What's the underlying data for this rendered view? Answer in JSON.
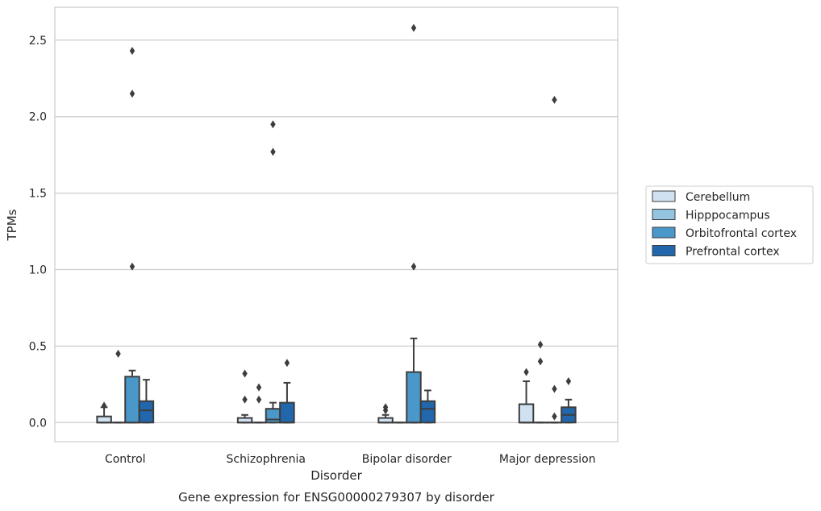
{
  "chart_data": {
    "type": "box",
    "title": "",
    "caption": "Gene expression for ENSG00000279307 by disorder",
    "xlabel": "Disorder",
    "ylabel": "TPMs",
    "ylim": [
      -0.125,
      2.715
    ],
    "yticks": [
      0.0,
      0.5,
      1.0,
      1.5,
      2.0,
      2.5
    ],
    "ytick_labels": [
      "0.0",
      "0.5",
      "1.0",
      "1.5",
      "2.0",
      "2.5"
    ],
    "grid": "horizontal",
    "legend_position": "right",
    "categories": [
      "Control",
      "Schizophrenia",
      "Bipolar disorder",
      "Major depression"
    ],
    "series": [
      {
        "name": "Cerebellum",
        "color": "#d0e1f2",
        "boxes": [
          {
            "q1": 0.0,
            "median": 0.0,
            "q3": 0.04,
            "whislo": 0.0,
            "whishi": 0.1,
            "fliers": [
              0.11
            ]
          },
          {
            "q1": 0.0,
            "median": 0.0,
            "q3": 0.03,
            "whislo": 0.0,
            "whishi": 0.05,
            "fliers": [
              0.15,
              0.32
            ]
          },
          {
            "q1": 0.0,
            "median": 0.0,
            "q3": 0.03,
            "whislo": 0.0,
            "whishi": 0.05,
            "fliers": [
              0.08,
              0.1
            ]
          },
          {
            "q1": 0.0,
            "median": 0.0,
            "q3": 0.12,
            "whislo": 0.0,
            "whishi": 0.27,
            "fliers": [
              0.33
            ]
          }
        ]
      },
      {
        "name": "Hipppocampus",
        "color": "#94c4df",
        "boxes": [
          {
            "q1": 0.0,
            "median": 0.0,
            "q3": 0.0,
            "whislo": 0.0,
            "whishi": 0.0,
            "fliers": [
              0.45
            ]
          },
          {
            "q1": 0.0,
            "median": 0.0,
            "q3": 0.0,
            "whislo": 0.0,
            "whishi": 0.0,
            "fliers": [
              0.15,
              0.23
            ]
          },
          {
            "q1": 0.0,
            "median": 0.0,
            "q3": 0.0,
            "whislo": 0.0,
            "whishi": 0.0,
            "fliers": []
          },
          {
            "q1": 0.0,
            "median": 0.0,
            "q3": 0.0,
            "whislo": 0.0,
            "whishi": 0.0,
            "fliers": [
              0.4,
              0.51
            ]
          }
        ]
      },
      {
        "name": "Orbitofrontal cortex",
        "color": "#4a98c9",
        "boxes": [
          {
            "q1": 0.0,
            "median": 0.0,
            "q3": 0.3,
            "whislo": 0.0,
            "whishi": 0.34,
            "fliers": [
              1.02,
              2.15,
              2.43
            ]
          },
          {
            "q1": 0.0,
            "median": 0.02,
            "q3": 0.09,
            "whislo": 0.0,
            "whishi": 0.13,
            "fliers": [
              1.77,
              1.95
            ]
          },
          {
            "q1": 0.0,
            "median": 0.0,
            "q3": 0.33,
            "whislo": 0.0,
            "whishi": 0.55,
            "fliers": [
              1.02,
              2.58
            ]
          },
          {
            "q1": 0.0,
            "median": 0.0,
            "q3": 0.0,
            "whislo": 0.0,
            "whishi": 0.0,
            "fliers": [
              0.04,
              0.22,
              2.11
            ]
          }
        ]
      },
      {
        "name": "Prefrontal cortex",
        "color": "#2266ac",
        "boxes": [
          {
            "q1": 0.0,
            "median": 0.08,
            "q3": 0.14,
            "whislo": 0.0,
            "whishi": 0.28,
            "fliers": []
          },
          {
            "q1": 0.0,
            "median": 0.0,
            "q3": 0.13,
            "whislo": 0.0,
            "whishi": 0.26,
            "fliers": [
              0.39
            ]
          },
          {
            "q1": 0.0,
            "median": 0.09,
            "q3": 0.14,
            "whislo": 0.0,
            "whishi": 0.21,
            "fliers": []
          },
          {
            "q1": 0.0,
            "median": 0.05,
            "q3": 0.1,
            "whislo": 0.0,
            "whishi": 0.15,
            "fliers": [
              0.27
            ]
          }
        ]
      }
    ]
  }
}
